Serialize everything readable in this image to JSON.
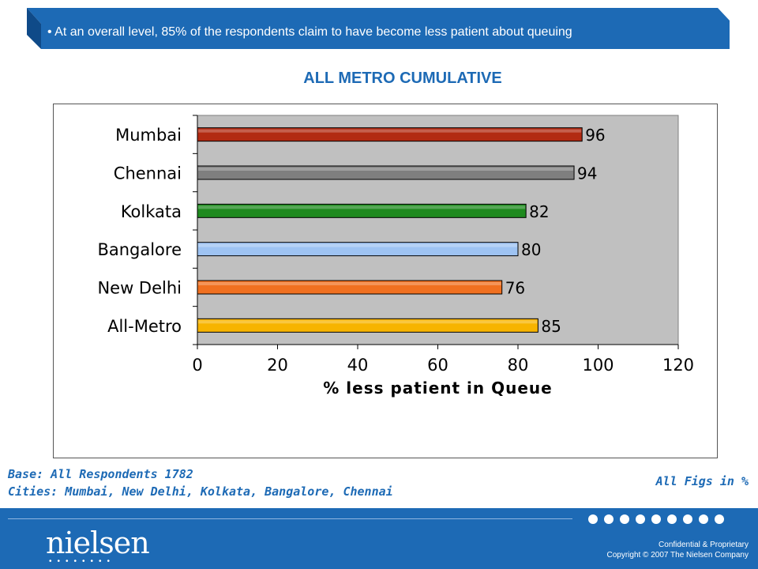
{
  "banner": {
    "text": "• At an overall level, 85% of the respondents claim to have become less patient about queuing",
    "color": "#1d6ab5"
  },
  "chart_data": {
    "type": "bar",
    "orientation": "horizontal",
    "title": "ALL METRO CUMULATIVE",
    "xlabel": "% less patient in Queue",
    "ylabel": "",
    "categories": [
      "Mumbai",
      "Chennai",
      "Kolkata",
      "Bangalore",
      "New Delhi",
      "All-Metro"
    ],
    "values": [
      96,
      94,
      82,
      80,
      76,
      85
    ],
    "bar_colors": [
      "#b22a12",
      "#7f7f7f",
      "#1f8a1f",
      "#9ec3f2",
      "#f07020",
      "#f7b400"
    ],
    "xlim": [
      0,
      120
    ],
    "x_ticks": [
      0,
      20,
      40,
      60,
      80,
      100,
      120
    ],
    "plot_background": "#c0c0c0",
    "grid": false,
    "legend": "none",
    "data_labels": true
  },
  "notes": {
    "base": "Base: All Respondents 1782",
    "cities": "Cities: Mumbai, New Delhi, Kolkata, Bangalore, Chennai",
    "figs": "All Figs in %"
  },
  "footer": {
    "logo": "nielsen",
    "confidential": "Confidential & Proprietary",
    "copyright": "Copyright © 2007 The Nielsen Company",
    "color": "#1d6ab5"
  }
}
